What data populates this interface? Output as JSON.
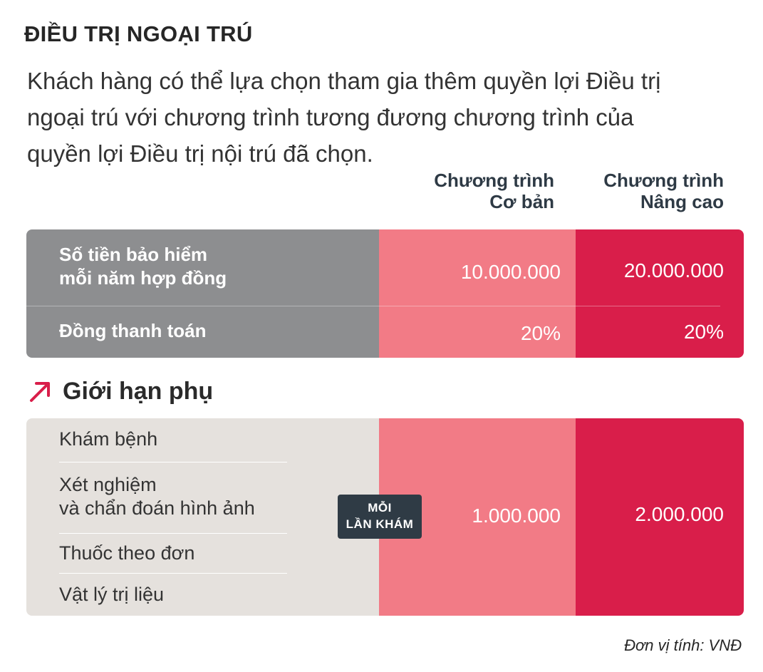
{
  "title": "ĐIỀU TRỊ NGOẠI TRÚ",
  "intro": {
    "line1": "Khách hàng có thể lựa chọn tham gia thêm quyền lợi Điều trị",
    "line2": "ngoại trú với chương trình tương đương chương trình của",
    "line3": "quyền lợi Điều trị nội trú đã chọn."
  },
  "columns": {
    "basic": {
      "line1": "Chương trình",
      "line2": "Cơ bản"
    },
    "advanced": {
      "line1": "Chương trình",
      "line2": "Nâng cao"
    }
  },
  "main_table": {
    "rows": [
      {
        "label_line1": "Số tiền bảo hiểm",
        "label_line2": "mỗi năm hợp đồng",
        "basic": "10.000.000",
        "advanced": "20.000.000"
      },
      {
        "label_line1": "Đồng thanh toán",
        "basic": "20%",
        "advanced": "20%"
      }
    ]
  },
  "sub_limits": {
    "heading": "Giới hạn phụ",
    "items": [
      {
        "line1": "Khám bệnh"
      },
      {
        "line1": "Xét nghiệm",
        "line2": "và chẩn đoán hình ảnh"
      },
      {
        "line1": "Thuốc theo đơn"
      },
      {
        "line1": "Vật lý trị liệu"
      }
    ],
    "badge": {
      "line1": "MỖI",
      "line2": "LẦN KHÁM"
    },
    "basic": "1.000.000",
    "advanced": "2.000.000"
  },
  "unit_note": "Đơn vị tính: VNĐ",
  "colors": {
    "label_grey": "#8d8e90",
    "basic_pink": "#f27b86",
    "advanced_red": "#d91e4a",
    "sub_label_bg": "#e5e1dd",
    "badge_bg": "#2f3b45"
  },
  "icons": {
    "sub_heading_icon": "arrow-up-right-icon"
  }
}
